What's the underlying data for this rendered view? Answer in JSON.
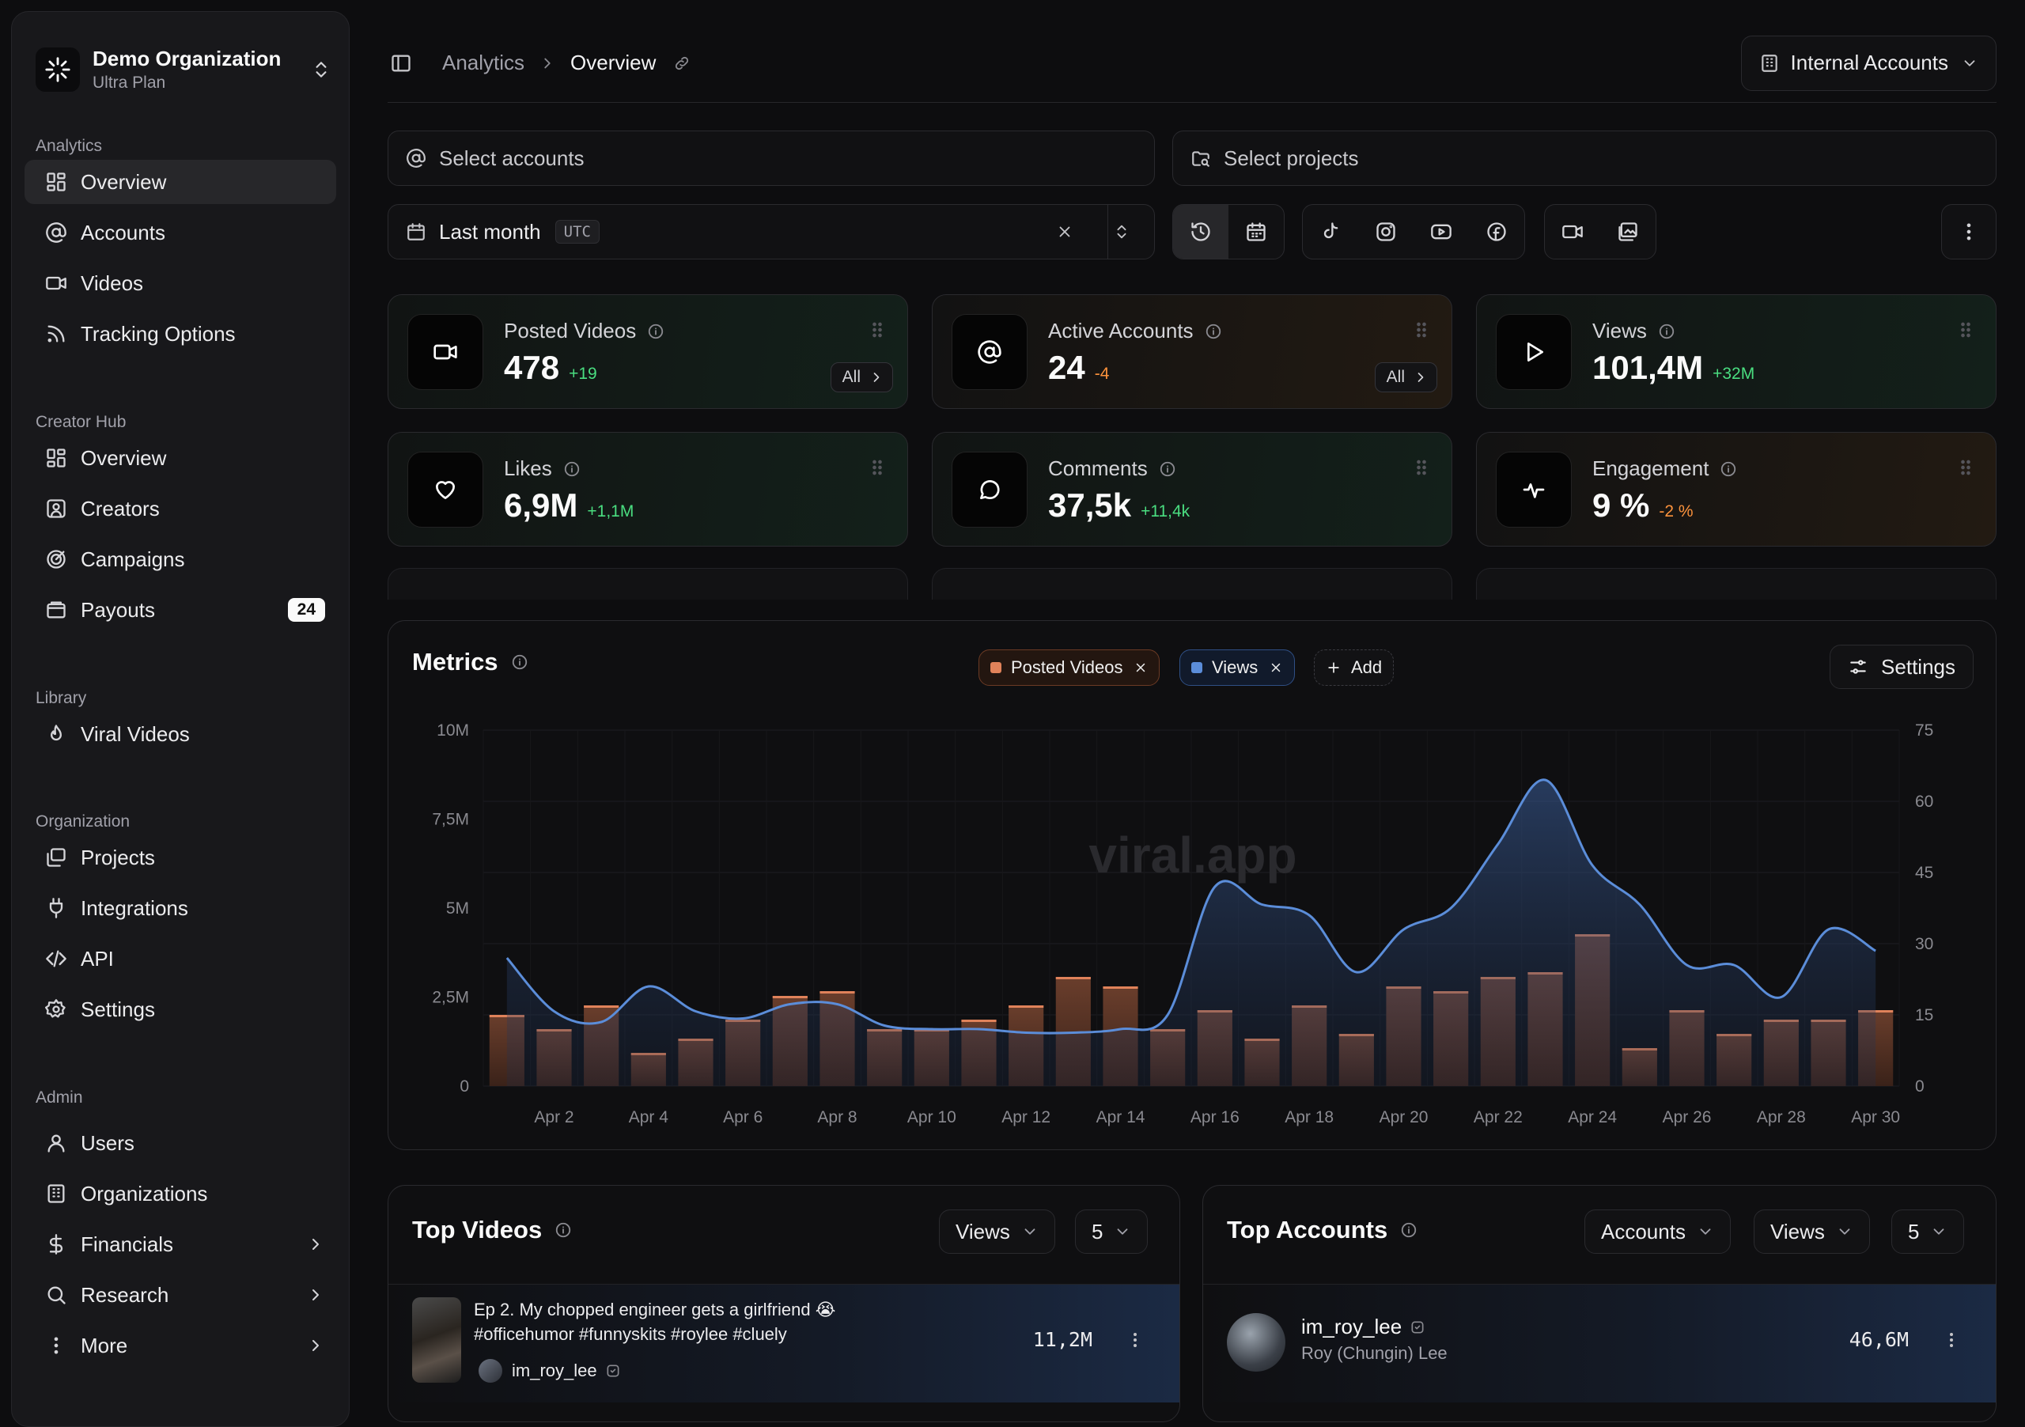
{
  "org": {
    "name": "Demo Organization",
    "plan": "Ultra Plan"
  },
  "sidebar": {
    "sections": [
      "Analytics",
      "Creator Hub",
      "Library",
      "Organization",
      "Admin"
    ],
    "analytics": [
      "Overview",
      "Accounts",
      "Videos",
      "Tracking Options"
    ],
    "creator_hub": [
      "Overview",
      "Creators",
      "Campaigns",
      "Payouts"
    ],
    "payouts_badge": "24",
    "library": [
      "Viral Videos"
    ],
    "organization": [
      "Projects",
      "Integrations",
      "API",
      "Settings"
    ],
    "admin": [
      "Users",
      "Organizations",
      "Financials",
      "Research",
      "More"
    ]
  },
  "breadcrumb": {
    "parent": "Analytics",
    "current": "Overview"
  },
  "account_scope": "Internal Accounts",
  "filters": {
    "accounts_placeholder": "Select accounts",
    "projects_placeholder": "Select projects",
    "date_range": "Last month",
    "timezone": "UTC"
  },
  "stats": [
    {
      "title": "Posted Videos",
      "value": "478",
      "delta": "+19",
      "trend": "up",
      "icon": "video-icon",
      "all": "All"
    },
    {
      "title": "Active Accounts",
      "value": "24",
      "delta": "-4",
      "trend": "down",
      "icon": "at-icon",
      "all": "All"
    },
    {
      "title": "Views",
      "value": "101,4M",
      "delta": "+32M",
      "trend": "up",
      "icon": "play-icon"
    },
    {
      "title": "Likes",
      "value": "6,9M",
      "delta": "+1,1M",
      "trend": "up",
      "icon": "heart-icon"
    },
    {
      "title": "Comments",
      "value": "37,5k",
      "delta": "+11,4k",
      "trend": "up",
      "icon": "comment-icon"
    },
    {
      "title": "Engagement",
      "value": "9 %",
      "delta": "-2 %",
      "trend": "down",
      "icon": "activity-icon"
    }
  ],
  "metrics": {
    "title": "Metrics",
    "chip_posted": "Posted Videos",
    "chip_views": "Views",
    "add_label": "Add",
    "settings_label": "Settings",
    "watermark": "viral.app"
  },
  "chart_data": {
    "type": "bar+line",
    "categories": [
      "Apr 1",
      "Apr 2",
      "Apr 3",
      "Apr 4",
      "Apr 5",
      "Apr 6",
      "Apr 7",
      "Apr 8",
      "Apr 9",
      "Apr 10",
      "Apr 11",
      "Apr 12",
      "Apr 13",
      "Apr 14",
      "Apr 15",
      "Apr 16",
      "Apr 17",
      "Apr 18",
      "Apr 19",
      "Apr 20",
      "Apr 21",
      "Apr 22",
      "Apr 23",
      "Apr 24",
      "Apr 25",
      "Apr 26",
      "Apr 27",
      "Apr 28",
      "Apr 29",
      "Apr 30"
    ],
    "x_tick_labels": [
      "Apr 2",
      "Apr 4",
      "Apr 6",
      "Apr 8",
      "Apr 10",
      "Apr 12",
      "Apr 14",
      "Apr 16",
      "Apr 18",
      "Apr 20",
      "Apr 22",
      "Apr 24",
      "Apr 26",
      "Apr 28",
      "Apr 30"
    ],
    "series": [
      {
        "name": "Posted Videos",
        "type": "bar",
        "axis": "right",
        "color": "#e0825a",
        "values": [
          15,
          12,
          17,
          7,
          10,
          14,
          19,
          20,
          12,
          12,
          14,
          17,
          23,
          21,
          12,
          16,
          10,
          17,
          11,
          21,
          20,
          23,
          24,
          32,
          8,
          16,
          11,
          14,
          14,
          16
        ]
      },
      {
        "name": "Views",
        "type": "area",
        "axis": "left",
        "color": "#5b8dd9",
        "values": [
          3600000,
          2100000,
          1800000,
          2800000,
          2100000,
          1900000,
          2300000,
          2300000,
          1700000,
          1600000,
          1600000,
          1500000,
          1500000,
          1600000,
          2000000,
          5600000,
          5100000,
          4800000,
          3200000,
          4400000,
          5000000,
          6800000,
          8600000,
          6200000,
          5100000,
          3400000,
          3400000,
          2500000,
          4400000,
          3800000
        ]
      }
    ],
    "y_left": {
      "ticks": [
        "0",
        "2,5M",
        "5M",
        "7,5M",
        "10M"
      ],
      "range": [
        0,
        10000000
      ]
    },
    "y_right": {
      "ticks": [
        "0",
        "15",
        "30",
        "45",
        "60",
        "75"
      ],
      "range": [
        0,
        75
      ]
    },
    "grid": true
  },
  "top_videos": {
    "title": "Top Videos",
    "metric": "Views",
    "count": "5",
    "rows": [
      {
        "title": "Ep 2. My chopped engineer gets a girlfriend 😭#officehumor #funnyskits #roylee #cluely",
        "account": "im_roy_lee",
        "value": "11,2M"
      }
    ]
  },
  "top_accounts": {
    "title": "Top Accounts",
    "group": "Accounts",
    "metric": "Views",
    "count": "5",
    "rows": [
      {
        "handle": "im_roy_lee",
        "name": "Roy (Chungin) Lee",
        "value": "46,6M"
      }
    ]
  }
}
